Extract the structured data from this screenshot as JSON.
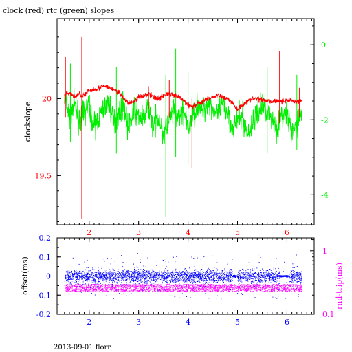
{
  "title": "clock (red) rtc (green) slopes",
  "footer": "2013-09-01 florr",
  "colors": {
    "red": "#ff0000",
    "green": "#00ee00",
    "blue": "#0000ff",
    "magenta": "#ff00ff",
    "axis_black": "#000000"
  },
  "chart_data": [
    {
      "type": "line",
      "ylabel": "clockslope",
      "xlim": [
        1.35,
        6.55
      ],
      "ylim_left": [
        19.18,
        20.52
      ],
      "ylim_right": [
        -4.8,
        0.7
      ],
      "x_ticks": [
        "2",
        "3",
        "4",
        "5",
        "6"
      ],
      "x_tick_values": [
        2,
        3,
        4,
        5,
        6
      ],
      "left_ticks": [
        "19.5",
        "20"
      ],
      "left_tick_values": [
        19.5,
        20.0
      ],
      "right_ticks": [
        "-4",
        "-2",
        "0"
      ],
      "right_tick_values": [
        -4,
        -2,
        0
      ],
      "series": [
        {
          "color": "red",
          "axis": "left",
          "x": [
            1.5,
            1.6,
            1.7,
            1.8,
            1.9,
            2.0,
            2.1,
            2.2,
            2.3,
            2.4,
            2.5,
            2.6,
            2.7,
            2.8,
            2.9,
            3.0,
            3.1,
            3.2,
            3.3,
            3.4,
            3.5,
            3.6,
            3.7,
            3.8,
            3.9,
            4.0,
            4.1,
            4.2,
            4.3,
            4.4,
            4.5,
            4.6,
            4.7,
            4.8,
            4.9,
            5.0,
            5.1,
            5.2,
            5.3,
            5.4,
            5.5,
            5.6,
            5.7,
            5.8,
            5.9,
            6.0,
            6.1,
            6.2,
            6.3
          ],
          "y": [
            20.02,
            20.04,
            20.01,
            20.03,
            20.02,
            20.05,
            20.06,
            20.07,
            20.08,
            20.07,
            20.06,
            20.04,
            20.0,
            19.97,
            19.98,
            20.01,
            20.02,
            20.03,
            20.01,
            20.0,
            20.02,
            20.03,
            20.02,
            20.01,
            19.99,
            19.96,
            19.95,
            19.97,
            19.98,
            20.0,
            20.01,
            20.02,
            20.01,
            20.0,
            19.97,
            19.93,
            19.96,
            19.98,
            20.0,
            20.0,
            19.99,
            19.99,
            19.98,
            19.99,
            19.98,
            19.99,
            19.99,
            19.98,
            19.99
          ],
          "spikes": [
            {
              "x": 1.52,
              "lo": 19.88,
              "hi": 20.27
            },
            {
              "x": 1.85,
              "lo": 19.22,
              "hi": 20.4
            },
            {
              "x": 3.2,
              "lo": 19.93,
              "hi": 20.08
            },
            {
              "x": 3.62,
              "lo": 19.88,
              "hi": 20.12
            },
            {
              "x": 4.08,
              "lo": 19.55,
              "hi": 20.0
            },
            {
              "x": 5.85,
              "lo": 19.84,
              "hi": 20.31
            },
            {
              "x": 6.25,
              "lo": 19.88,
              "hi": 20.07
            }
          ]
        },
        {
          "color": "green",
          "axis": "right",
          "x": [
            1.5,
            1.6,
            1.7,
            1.8,
            1.9,
            2.0,
            2.1,
            2.2,
            2.3,
            2.4,
            2.5,
            2.6,
            2.7,
            2.8,
            2.9,
            3.0,
            3.1,
            3.2,
            3.3,
            3.4,
            3.5,
            3.6,
            3.7,
            3.8,
            3.9,
            4.0,
            4.1,
            4.2,
            4.3,
            4.4,
            4.5,
            4.6,
            4.7,
            4.8,
            4.9,
            5.0,
            5.1,
            5.2,
            5.3,
            5.4,
            5.5,
            5.6,
            5.7,
            5.8,
            5.9,
            6.0,
            6.1,
            6.2,
            6.3
          ],
          "y": [
            -1.4,
            -1.9,
            -1.6,
            -2.0,
            -1.8,
            -1.6,
            -2.2,
            -1.9,
            -1.7,
            -1.5,
            -2.1,
            -1.8,
            -1.6,
            -2.3,
            -1.7,
            -1.9,
            -2.0,
            -1.6,
            -2.2,
            -1.9,
            -2.4,
            -2.1,
            -1.8,
            -2.0,
            -1.7,
            -2.3,
            -1.9,
            -1.6,
            -1.8,
            -1.5,
            -1.7,
            -1.9,
            -1.6,
            -1.8,
            -2.2,
            -2.0,
            -1.9,
            -2.4,
            -2.1,
            -1.8,
            -1.6,
            -1.7,
            -2.0,
            -2.2,
            -1.9,
            -1.8,
            -2.4,
            -2.1,
            -1.8
          ],
          "spikes": [
            {
              "x": 1.62,
              "lo": -2.6,
              "hi": -0.5
            },
            {
              "x": 2.55,
              "lo": -2.9,
              "hi": -0.6
            },
            {
              "x": 3.55,
              "lo": -4.6,
              "hi": -0.8
            },
            {
              "x": 3.75,
              "lo": -3.0,
              "hi": -0.1
            },
            {
              "x": 4.0,
              "lo": -3.2,
              "hi": -0.7
            },
            {
              "x": 5.6,
              "lo": -2.9,
              "hi": -0.6
            },
            {
              "x": 6.2,
              "lo": -2.8,
              "hi": -0.8
            }
          ]
        }
      ]
    },
    {
      "type": "scatter",
      "ylabel_left": "offset(ms)",
      "ylabel_right": "rnd-trip(ms)",
      "xlim": [
        1.35,
        6.55
      ],
      "ylim_left": [
        -0.2,
        0.2
      ],
      "ylim_right_log": [
        0.1,
        1.6
      ],
      "x_ticks": [
        "2",
        "3",
        "4",
        "5",
        "6"
      ],
      "x_tick_values": [
        2,
        3,
        4,
        5,
        6
      ],
      "left_ticks": [
        "-0.2",
        "-0.1",
        "0",
        "0.1",
        "0.2"
      ],
      "left_tick_values": [
        -0.2,
        -0.1,
        0,
        0.1,
        0.2
      ],
      "right_ticks": [
        "0.1",
        "1"
      ],
      "right_tick_values": [
        0.1,
        1
      ],
      "series": [
        {
          "color": "blue",
          "axis": "left",
          "x_range": [
            1.5,
            6.3
          ],
          "center": 0.0,
          "spread": 0.035,
          "outliers_to": 0.12,
          "gaps": [
            [
              4.9,
              5.0
            ],
            [
              5.85,
              6.05
            ]
          ]
        },
        {
          "color": "magenta",
          "axis": "right",
          "x_range": [
            1.5,
            6.3
          ],
          "band": [
            0.23,
            0.3
          ]
        }
      ]
    }
  ]
}
